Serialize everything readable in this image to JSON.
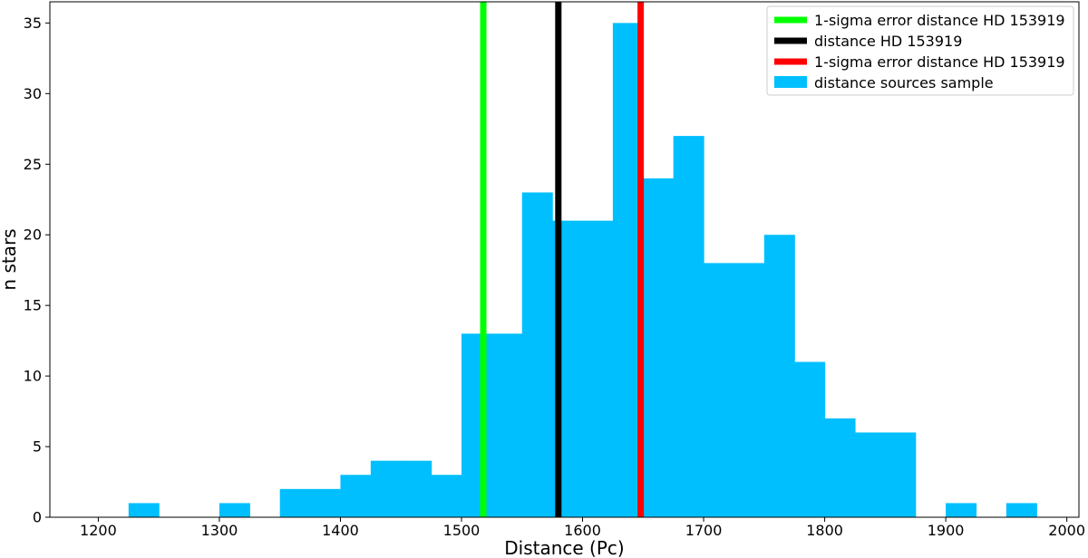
{
  "chart_data": {
    "type": "bar",
    "xlabel": "Distance (Pc)",
    "ylabel": "n stars",
    "xlim": [
      1160,
      2010
    ],
    "ylim": [
      0,
      36.5
    ],
    "xticks": [
      1200,
      1300,
      1400,
      1500,
      1600,
      1700,
      1800,
      1900,
      2000
    ],
    "yticks": [
      0,
      5,
      10,
      15,
      20,
      25,
      30,
      35
    ],
    "grid": false,
    "legend_position": "top-right",
    "histogram": {
      "name": "distance sources sample",
      "color": "#00bfff",
      "bins": [
        {
          "x0": 1225,
          "x1": 1250,
          "count": 1
        },
        {
          "x0": 1300,
          "x1": 1325,
          "count": 1
        },
        {
          "x0": 1350,
          "x1": 1375,
          "count": 2
        },
        {
          "x0": 1375,
          "x1": 1400,
          "count": 2
        },
        {
          "x0": 1400,
          "x1": 1425,
          "count": 3
        },
        {
          "x0": 1425,
          "x1": 1450,
          "count": 4
        },
        {
          "x0": 1450,
          "x1": 1475,
          "count": 4
        },
        {
          "x0": 1475,
          "x1": 1500,
          "count": 3
        },
        {
          "x0": 1500,
          "x1": 1525,
          "count": 13
        },
        {
          "x0": 1525,
          "x1": 1550,
          "count": 13
        },
        {
          "x0": 1550,
          "x1": 1575,
          "count": 23
        },
        {
          "x0": 1575,
          "x1": 1600,
          "count": 21
        },
        {
          "x0": 1600,
          "x1": 1625,
          "count": 21
        },
        {
          "x0": 1625,
          "x1": 1650,
          "count": 35
        },
        {
          "x0": 1650,
          "x1": 1675,
          "count": 24
        },
        {
          "x0": 1675,
          "x1": 1700,
          "count": 27
        },
        {
          "x0": 1700,
          "x1": 1725,
          "count": 18
        },
        {
          "x0": 1725,
          "x1": 1750,
          "count": 18
        },
        {
          "x0": 1750,
          "x1": 1775,
          "count": 20
        },
        {
          "x0": 1775,
          "x1": 1800,
          "count": 11
        },
        {
          "x0": 1800,
          "x1": 1825,
          "count": 7
        },
        {
          "x0": 1825,
          "x1": 1850,
          "count": 6
        },
        {
          "x0": 1850,
          "x1": 1875,
          "count": 6
        },
        {
          "x0": 1900,
          "x1": 1925,
          "count": 1
        },
        {
          "x0": 1950,
          "x1": 1975,
          "count": 1
        }
      ]
    },
    "vlines": [
      {
        "name": "1-sigma error distance HD 153919",
        "x": 1518,
        "color": "#00ff00"
      },
      {
        "name": "distance HD 153919",
        "x": 1580,
        "color": "#000000"
      },
      {
        "name": "1-sigma error distance HD 153919",
        "x": 1648,
        "color": "#ff0000"
      }
    ],
    "legend": [
      {
        "label": "1-sigma error distance HD 153919",
        "color": "#00ff00",
        "kind": "line"
      },
      {
        "label": "distance HD 153919",
        "color": "#000000",
        "kind": "line"
      },
      {
        "label": "1-sigma error distance HD 153919",
        "color": "#ff0000",
        "kind": "line"
      },
      {
        "label": "distance sources sample",
        "color": "#00bfff",
        "kind": "patch"
      }
    ]
  }
}
